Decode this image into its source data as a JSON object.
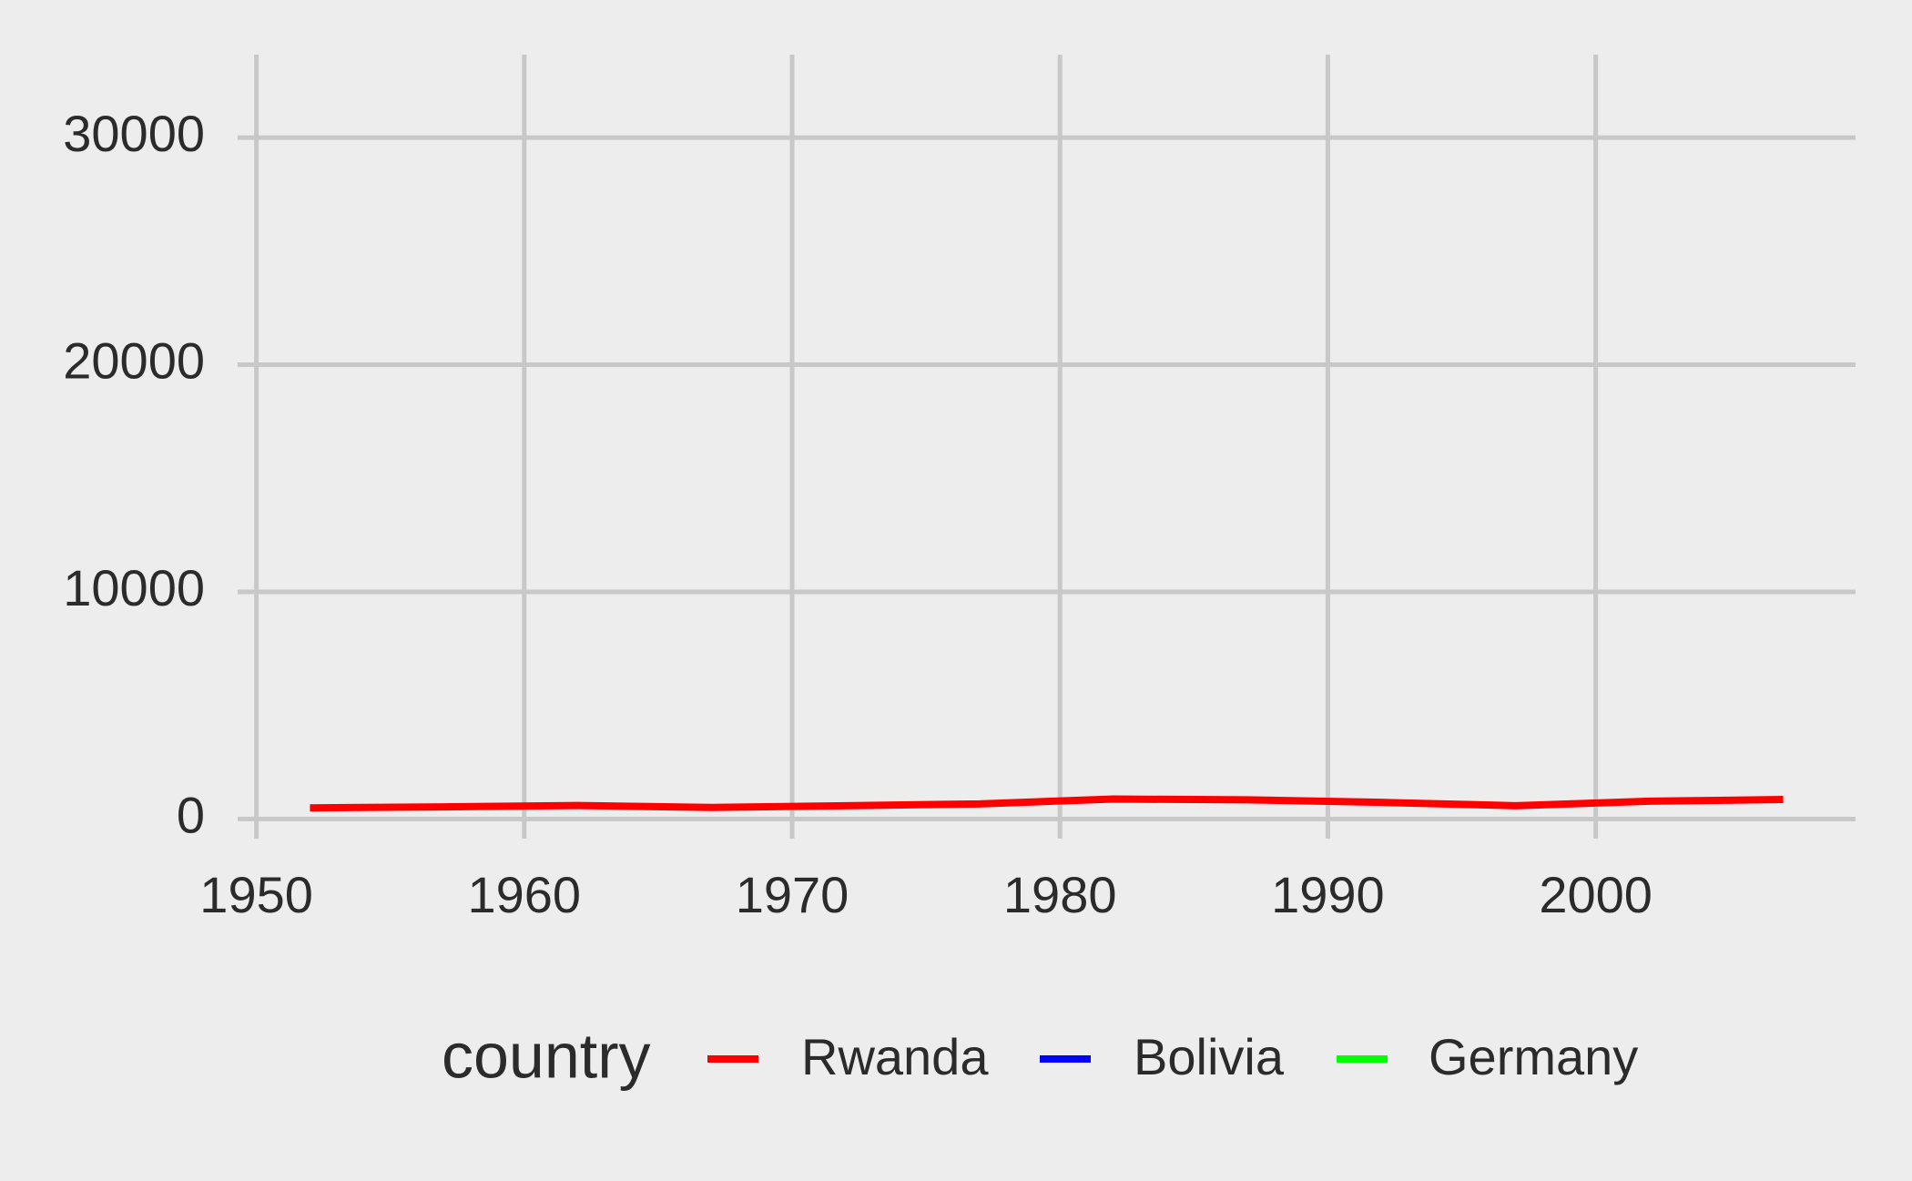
{
  "chart_data": {
    "type": "line",
    "x": [
      1952,
      1957,
      1962,
      1967,
      1972,
      1977,
      1982,
      1987,
      1992,
      1997,
      2002,
      2007
    ],
    "series": [
      {
        "name": "Rwanda",
        "color": "#ff0000",
        "values": [
          493,
          540,
          597,
          511,
          590,
          670,
          882,
          848,
          737,
          590,
          786,
          863
        ]
      },
      {
        "name": "Bolivia",
        "color": "#0000ff",
        "values": [
          null,
          null,
          null,
          null,
          null,
          null,
          null,
          null,
          null,
          null,
          null,
          null
        ]
      },
      {
        "name": "Germany",
        "color": "#00ff00",
        "values": [
          null,
          null,
          null,
          null,
          null,
          null,
          null,
          null,
          null,
          null,
          null,
          null
        ]
      }
    ],
    "legend_title": "country",
    "xlim": [
      1949.3,
      2009.7
    ],
    "xticks": [
      1950,
      1960,
      1970,
      1980,
      1990,
      2000
    ],
    "ylim": [
      -860,
      33650
    ],
    "yticks": [
      0,
      10000,
      20000,
      30000
    ],
    "grid": true,
    "legend_position": "bottom"
  }
}
